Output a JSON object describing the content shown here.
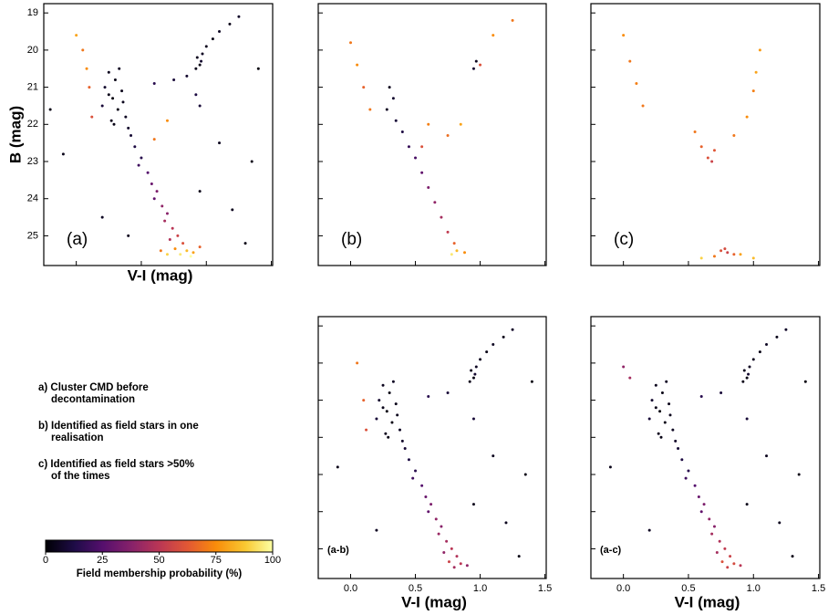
{
  "chart_data": [
    {
      "type": "scatter",
      "label": "(a)",
      "x_label": "V-I (mag)",
      "y_label": "B (mag)",
      "xlim": [
        -0.25,
        1.51
      ],
      "ylim": [
        25.8,
        18.75
      ],
      "xticks": [
        {
          "value": 0,
          "label": "0.0"
        },
        {
          "value": 0.5,
          "label": "0.5"
        },
        {
          "value": 1,
          "label": "1.0"
        },
        {
          "value": 1.5,
          "label": "1.5"
        }
      ],
      "yticks": [
        19,
        20,
        21,
        22,
        23,
        24,
        25
      ],
      "tick_labels": {
        "x": false,
        "y": true
      },
      "x": [
        0.25,
        0.3,
        0.22,
        0.35,
        0.28,
        0.2,
        0.32,
        0.38,
        0.27,
        0.4,
        0.25,
        0.33,
        0.29,
        0.36,
        0.42,
        0.45,
        0.5,
        0.48,
        0.55,
        0.58,
        0.62,
        0.6,
        0.66,
        0.7,
        0.68,
        0.74,
        0.78,
        0.72,
        0.82,
        0.76,
        0.85,
        0.8,
        0.9,
        0.7,
        0.88,
        0.95,
        0.65,
        0.93,
        0.95,
        0.97,
        0.92,
        0.96,
        1.0,
        1.05,
        1.1,
        1.18,
        1.25,
        0.95,
        0.92,
        0.6,
        0.75,
        0.85,
        0.05,
        0.08,
        0.1,
        0.0,
        0.12,
        0.6,
        0.7,
        1.1,
        1.35,
        -0.1,
        0.2,
        1.2,
        1.4,
        -0.2,
        0.95,
        0.4,
        1.3
      ],
      "y": [
        20.6,
        20.8,
        21.0,
        21.1,
        21.3,
        21.5,
        21.6,
        21.8,
        21.9,
        22.1,
        21.2,
        20.5,
        22.0,
        21.4,
        22.3,
        22.6,
        22.9,
        23.1,
        23.3,
        23.6,
        23.8,
        24.0,
        24.2,
        24.4,
        24.6,
        24.8,
        25.0,
        25.1,
        25.2,
        25.35,
        25.4,
        25.5,
        25.45,
        25.5,
        25.55,
        25.3,
        25.4,
        20.2,
        20.4,
        20.1,
        20.5,
        20.3,
        19.9,
        19.7,
        19.5,
        19.3,
        19.1,
        21.5,
        21.2,
        20.9,
        20.8,
        20.7,
        20.0,
        20.5,
        21.0,
        19.6,
        21.8,
        22.4,
        21.9,
        22.5,
        23.0,
        22.8,
        24.5,
        24.3,
        20.5,
        21.6,
        23.8,
        25.0,
        25.2
      ],
      "probability": [
        5,
        3,
        8,
        4,
        2,
        10,
        3,
        6,
        5,
        7,
        4,
        6,
        3,
        5,
        9,
        12,
        15,
        20,
        25,
        30,
        35,
        28,
        40,
        38,
        45,
        50,
        55,
        48,
        60,
        75,
        85,
        95,
        80,
        90,
        100,
        65,
        70,
        5,
        3,
        6,
        4,
        8,
        5,
        3,
        6,
        4,
        7,
        10,
        12,
        15,
        10,
        8,
        70,
        75,
        65,
        80,
        60,
        70,
        75,
        5,
        3,
        4,
        6,
        5,
        2,
        3,
        4,
        5,
        3
      ]
    },
    {
      "type": "scatter",
      "label": "(b)",
      "xlim": [
        -0.25,
        1.51
      ],
      "ylim": [
        25.8,
        18.75
      ],
      "xticks": [
        {
          "value": 0,
          "label": "0.0"
        },
        {
          "value": 0.5,
          "label": "0.5"
        },
        {
          "value": 1,
          "label": "1.0"
        },
        {
          "value": 1.5,
          "label": "1.5"
        }
      ],
      "yticks": [
        19,
        20,
        21,
        22,
        23,
        24,
        25
      ],
      "tick_labels": {
        "x": false,
        "y": false
      },
      "x": [
        0.3,
        0.33,
        0.28,
        0.35,
        0.4,
        0.45,
        0.5,
        0.55,
        0.6,
        0.65,
        0.7,
        0.75,
        0.8,
        0.82,
        0.78,
        0.88,
        0.97,
        0.95,
        0.0,
        0.05,
        0.1,
        0.15,
        0.6,
        0.75,
        0.85,
        1.0,
        1.1,
        1.25,
        0.55
      ],
      "y": [
        21.0,
        21.3,
        21.6,
        21.9,
        22.2,
        22.6,
        22.9,
        23.3,
        23.7,
        24.1,
        24.5,
        24.9,
        25.2,
        25.4,
        25.5,
        25.45,
        20.3,
        20.5,
        19.8,
        20.4,
        21.0,
        21.6,
        22.0,
        22.3,
        22.0,
        20.4,
        19.6,
        19.2,
        22.6
      ],
      "probability": [
        5,
        8,
        6,
        10,
        12,
        18,
        22,
        28,
        35,
        40,
        45,
        52,
        65,
        85,
        95,
        75,
        5,
        8,
        70,
        75,
        65,
        70,
        72,
        68,
        80,
        60,
        75,
        70,
        60
      ]
    },
    {
      "type": "scatter",
      "label": "(c)",
      "xlim": [
        -0.25,
        1.51
      ],
      "ylim": [
        25.8,
        18.75
      ],
      "xticks": [
        {
          "value": 0,
          "label": "0.0"
        },
        {
          "value": 0.5,
          "label": "0.5"
        },
        {
          "value": 1,
          "label": "1.0"
        },
        {
          "value": 1.5,
          "label": "1.5"
        }
      ],
      "yticks": [
        19,
        20,
        21,
        22,
        23,
        24,
        25
      ],
      "tick_labels": {
        "x": false,
        "y": false
      },
      "x": [
        0.0,
        0.05,
        0.1,
        0.15,
        0.55,
        0.6,
        0.65,
        0.68,
        0.7,
        0.85,
        0.95,
        1.0,
        1.02,
        1.05,
        0.75,
        0.8,
        0.85,
        0.7,
        0.9,
        0.78,
        1.0,
        0.6
      ],
      "y": [
        19.6,
        20.3,
        20.9,
        21.5,
        22.2,
        22.6,
        22.9,
        23.0,
        22.7,
        22.3,
        21.8,
        21.1,
        20.6,
        20.0,
        25.4,
        25.45,
        25.5,
        25.55,
        25.5,
        25.35,
        25.6,
        25.6
      ],
      "probability": [
        75,
        70,
        72,
        70,
        70,
        65,
        60,
        55,
        62,
        70,
        75,
        72,
        80,
        78,
        60,
        55,
        65,
        70,
        80,
        58,
        85,
        90
      ]
    },
    {
      "type": "scatter",
      "label": "(a-b)",
      "x_label": "V-I (mag)",
      "xlim": [
        -0.25,
        1.51
      ],
      "ylim": [
        25.8,
        18.75
      ],
      "xticks": [
        {
          "value": 0,
          "label": "0.0"
        },
        {
          "value": 0.5,
          "label": "0.5"
        },
        {
          "value": 1,
          "label": "1.0"
        },
        {
          "value": 1.5,
          "label": "1.5"
        }
      ],
      "yticks": [
        19,
        20,
        21,
        22,
        23,
        24,
        25
      ],
      "tick_labels": {
        "x": true,
        "y": false
      },
      "x": [
        0.25,
        0.3,
        0.22,
        0.35,
        0.28,
        0.2,
        0.32,
        0.38,
        0.27,
        0.4,
        0.25,
        0.33,
        0.29,
        0.36,
        0.42,
        0.45,
        0.5,
        0.48,
        0.55,
        0.58,
        0.62,
        0.6,
        0.66,
        0.7,
        0.68,
        0.74,
        0.78,
        0.72,
        0.82,
        0.76,
        0.85,
        0.8,
        0.9,
        0.93,
        0.95,
        0.97,
        0.92,
        0.96,
        1.0,
        1.05,
        1.1,
        1.18,
        1.25,
        0.95,
        0.6,
        0.75,
        0.05,
        0.1,
        0.12,
        1.1,
        1.35,
        -0.1,
        0.2,
        1.2,
        1.4,
        0.95,
        1.3
      ],
      "y": [
        20.6,
        20.8,
        21.0,
        21.1,
        21.3,
        21.5,
        21.6,
        21.8,
        21.9,
        22.1,
        21.2,
        20.5,
        22.0,
        21.4,
        22.3,
        22.6,
        22.9,
        23.1,
        23.3,
        23.6,
        23.8,
        24.0,
        24.2,
        24.4,
        24.6,
        24.8,
        25.0,
        25.1,
        25.2,
        25.35,
        25.4,
        25.5,
        25.45,
        20.2,
        20.4,
        20.1,
        20.5,
        20.3,
        19.9,
        19.7,
        19.5,
        19.3,
        19.1,
        21.5,
        20.9,
        20.8,
        20.0,
        21.0,
        21.8,
        22.5,
        23.0,
        22.8,
        24.5,
        24.3,
        20.5,
        23.8,
        25.2
      ],
      "probability": [
        5,
        3,
        8,
        4,
        2,
        10,
        3,
        6,
        5,
        7,
        4,
        6,
        3,
        5,
        9,
        12,
        15,
        20,
        25,
        30,
        35,
        28,
        40,
        38,
        42,
        45,
        50,
        40,
        48,
        55,
        50,
        45,
        40,
        5,
        3,
        6,
        4,
        8,
        5,
        3,
        6,
        4,
        7,
        10,
        15,
        10,
        70,
        65,
        60,
        5,
        3,
        4,
        6,
        5,
        2,
        4,
        3
      ]
    },
    {
      "type": "scatter",
      "label": "(a-c)",
      "x_label": "V-I (mag)",
      "xlim": [
        -0.25,
        1.51
      ],
      "ylim": [
        25.8,
        18.75
      ],
      "xticks": [
        {
          "value": 0,
          "label": "0.0"
        },
        {
          "value": 0.5,
          "label": "0.5"
        },
        {
          "value": 1,
          "label": "1.0"
        },
        {
          "value": 1.5,
          "label": "1.5"
        }
      ],
      "yticks": [
        19,
        20,
        21,
        22,
        23,
        24,
        25
      ],
      "tick_labels": {
        "x": true,
        "y": false
      },
      "x": [
        0.25,
        0.3,
        0.22,
        0.35,
        0.28,
        0.2,
        0.32,
        0.38,
        0.27,
        0.4,
        0.25,
        0.33,
        0.29,
        0.36,
        0.42,
        0.45,
        0.5,
        0.48,
        0.55,
        0.58,
        0.62,
        0.6,
        0.66,
        0.7,
        0.68,
        0.74,
        0.78,
        0.72,
        0.82,
        0.76,
        0.85,
        0.8,
        0.9,
        0.93,
        0.95,
        0.97,
        0.92,
        0.96,
        1.0,
        1.05,
        1.1,
        1.18,
        1.25,
        0.95,
        0.6,
        0.75,
        0.0,
        0.05,
        1.1,
        1.35,
        -0.1,
        0.2,
        1.2,
        1.4,
        0.95,
        1.3
      ],
      "y": [
        20.6,
        20.8,
        21.0,
        21.1,
        21.3,
        21.5,
        21.6,
        21.8,
        21.9,
        22.1,
        21.2,
        20.5,
        22.0,
        21.4,
        22.3,
        22.6,
        22.9,
        23.1,
        23.3,
        23.6,
        23.8,
        24.0,
        24.2,
        24.4,
        24.6,
        24.8,
        25.0,
        25.1,
        25.2,
        25.35,
        25.4,
        25.5,
        25.45,
        20.2,
        20.4,
        20.1,
        20.5,
        20.3,
        19.9,
        19.7,
        19.5,
        19.3,
        19.1,
        21.5,
        20.9,
        20.8,
        20.1,
        20.4,
        22.5,
        23.0,
        22.8,
        24.5,
        24.3,
        20.5,
        23.8,
        25.2
      ],
      "probability": [
        5,
        3,
        8,
        4,
        2,
        10,
        3,
        6,
        5,
        7,
        4,
        6,
        3,
        5,
        9,
        12,
        15,
        20,
        25,
        30,
        35,
        28,
        40,
        38,
        45,
        48,
        52,
        45,
        55,
        60,
        58,
        55,
        50,
        5,
        3,
        6,
        4,
        8,
        5,
        3,
        6,
        4,
        7,
        10,
        15,
        10,
        40,
        45,
        5,
        3,
        4,
        6,
        5,
        2,
        4,
        3
      ]
    }
  ],
  "colorbar": {
    "label": "Field membership probability (%)",
    "colormap": "inferno",
    "lim": [
      0,
      100
    ],
    "ticks": [
      0,
      25,
      50,
      75,
      100
    ]
  },
  "notes": [
    [
      "a) Cluster CMD before",
      "decontamination"
    ],
    [
      "b) Identified as field stars in one",
      "realisation"
    ],
    [
      "c) Identified as field stars >50%",
      "of the times"
    ]
  ]
}
